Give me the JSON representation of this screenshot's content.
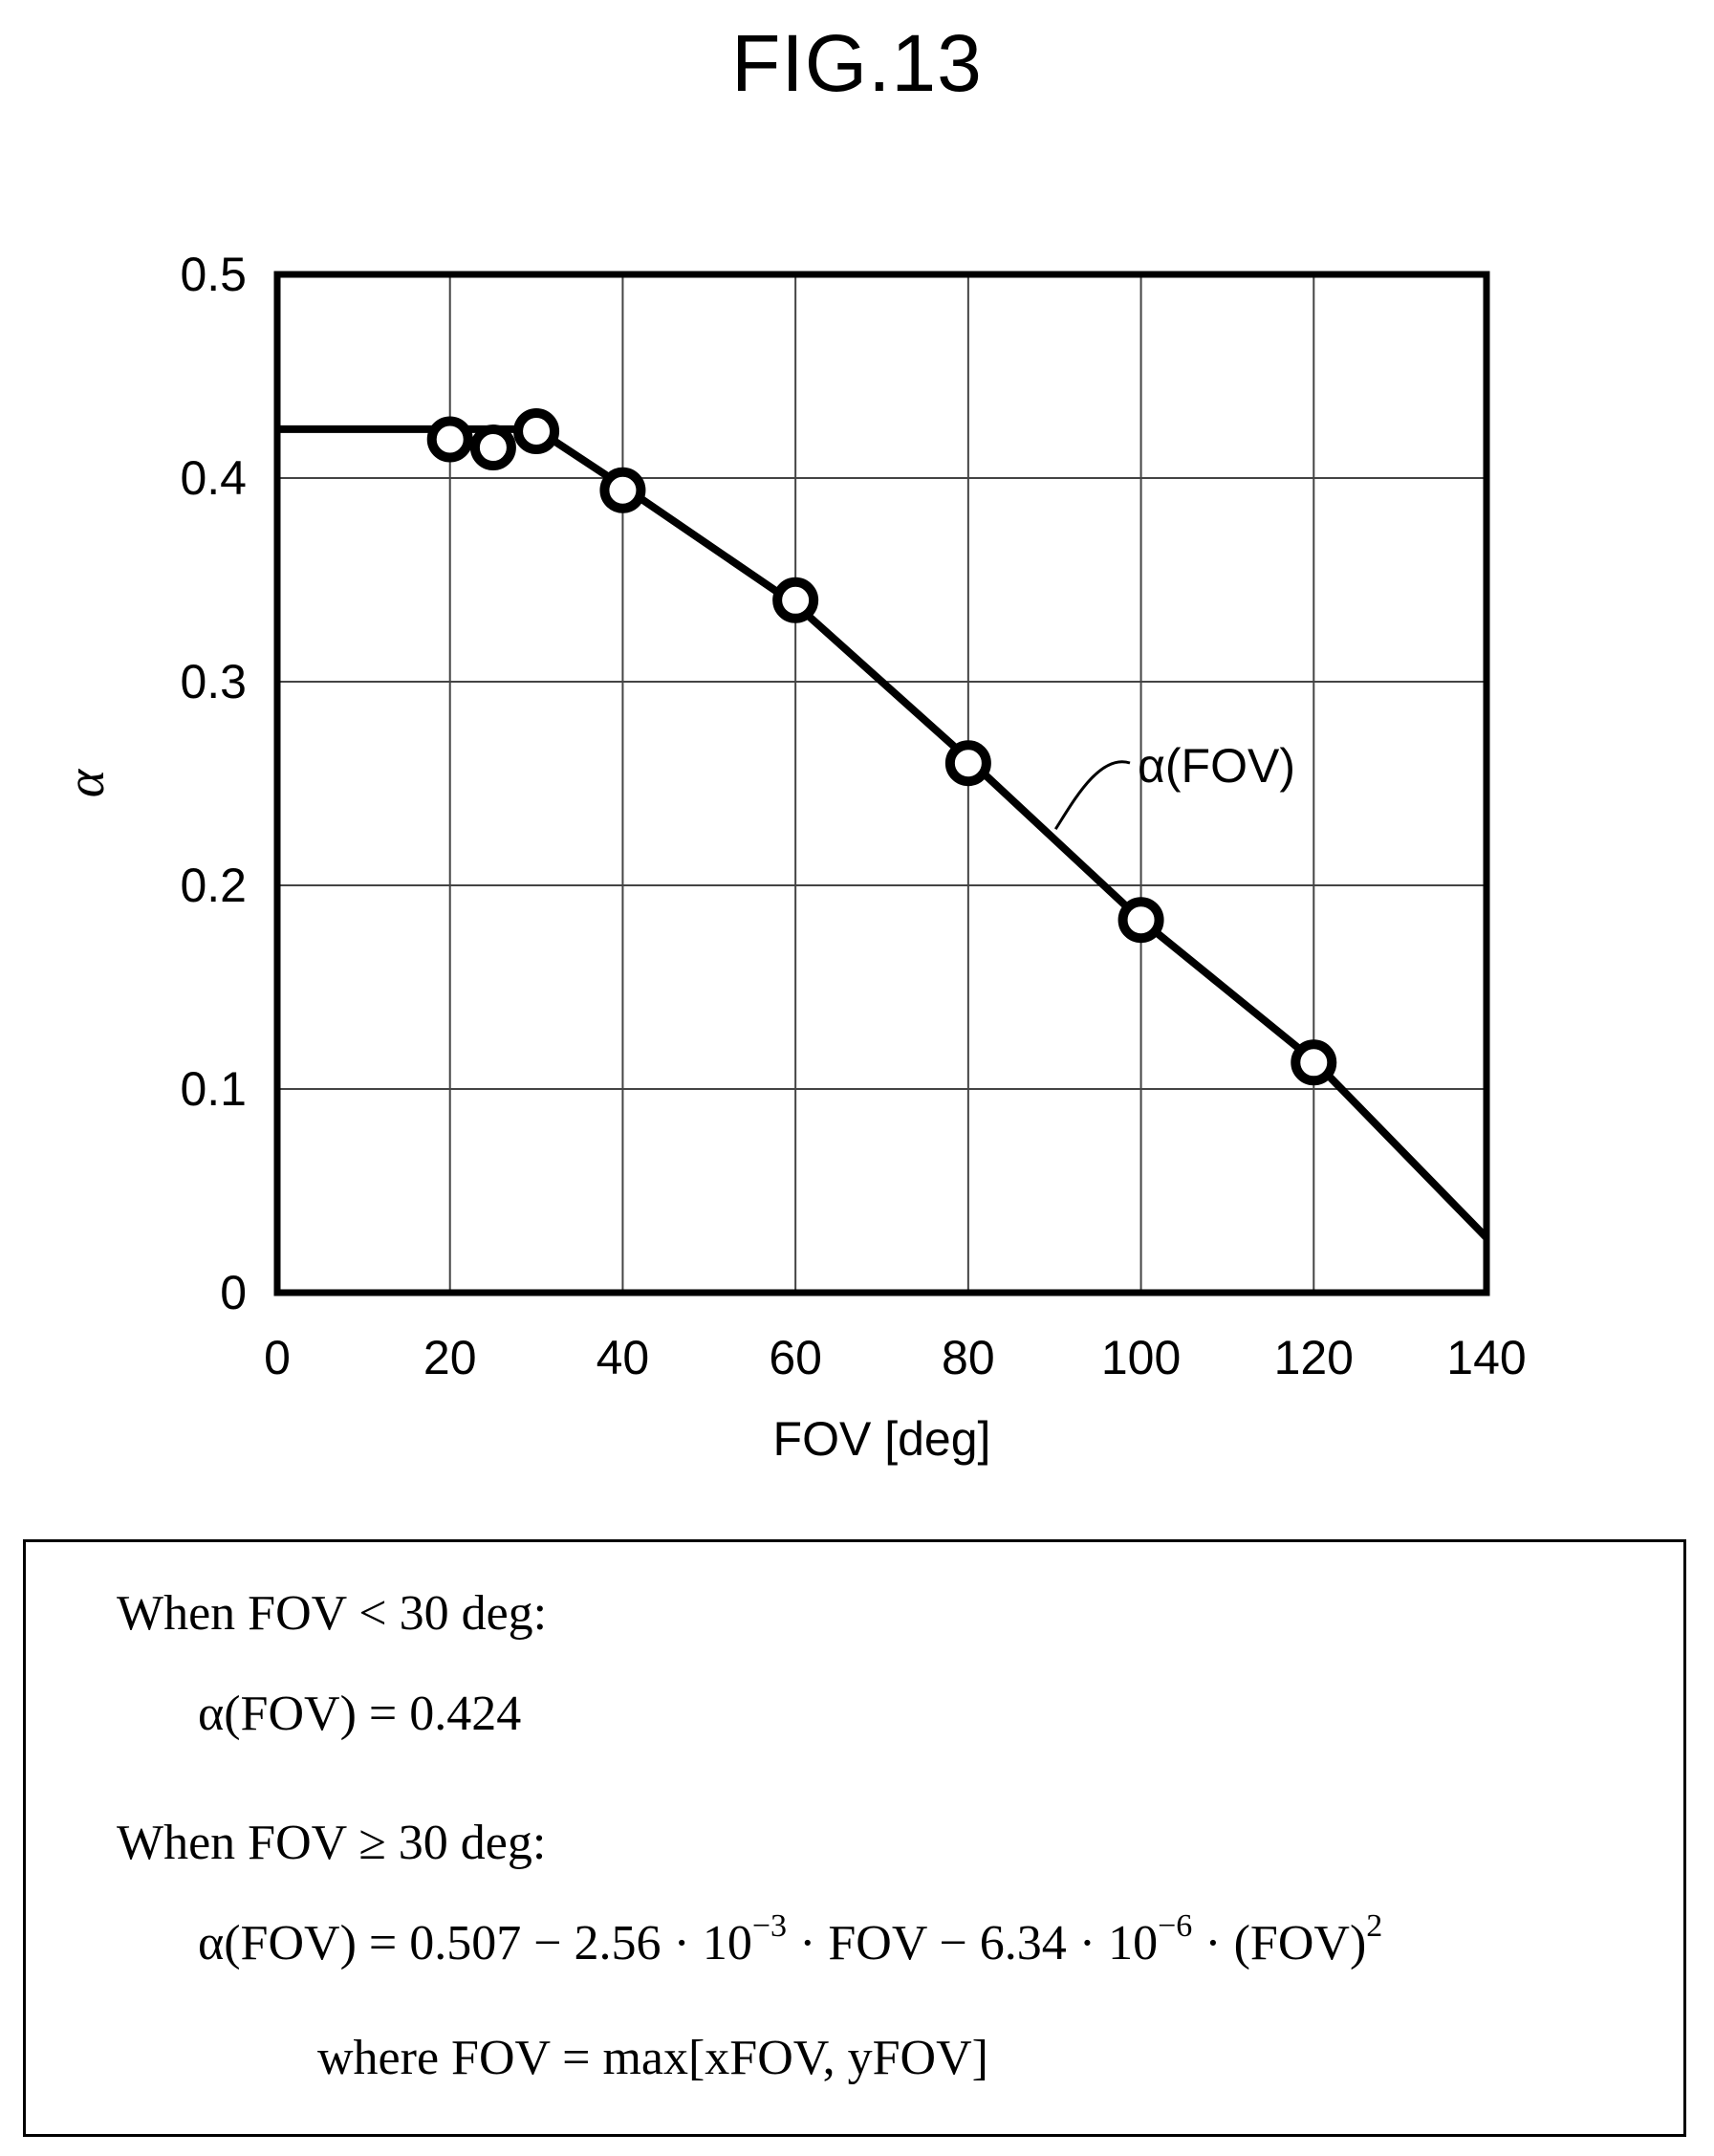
{
  "figure_label": "FIG.13",
  "chart_data": {
    "type": "line",
    "xlabel": "FOV [deg]",
    "ylabel": "α",
    "xlim": [
      0,
      140
    ],
    "ylim": [
      0,
      0.5
    ],
    "x_ticks": [
      0,
      20,
      40,
      60,
      80,
      100,
      120,
      140
    ],
    "x_tick_labels": [
      "0",
      "20",
      "40",
      "60",
      "80",
      "100",
      "120",
      "140"
    ],
    "y_ticks": [
      0,
      0.1,
      0.2,
      0.3,
      0.4,
      0.5
    ],
    "y_tick_labels": [
      "0",
      "0.1",
      "0.2",
      "0.3",
      "0.4",
      "0.5"
    ],
    "grid": true,
    "series": [
      {
        "name": "α(FOV)",
        "style": "line",
        "x": [
          0,
          30,
          40,
          60,
          80,
          100,
          120,
          140
        ],
        "y": [
          0.424,
          0.424,
          0.396,
          0.338,
          0.262,
          0.183,
          0.114,
          0.027
        ]
      },
      {
        "style": "markers",
        "marker": "open-circle",
        "x": [
          20,
          25,
          30,
          40,
          60,
          80,
          100,
          120
        ],
        "y": [
          0.419,
          0.415,
          0.423,
          0.394,
          0.34,
          0.26,
          0.183,
          0.113
        ]
      }
    ],
    "annotation": "α(FOV)"
  },
  "formulas": {
    "cond1": "When FOV  <  30 deg:",
    "eq1": "α(FOV) = 0.424",
    "cond2": "When FOV  ≥  30 deg:",
    "eq2_a": "α(FOV) = 0.507 − 2.56 · 10",
    "eq2_sup1": "−3",
    "eq2_b": " · FOV − 6.34 · 10",
    "eq2_sup2": "−6",
    "eq2_c": " · (FOV)",
    "eq2_sup3": "2",
    "where": "where FOV = max[xFOV, yFOV]"
  }
}
